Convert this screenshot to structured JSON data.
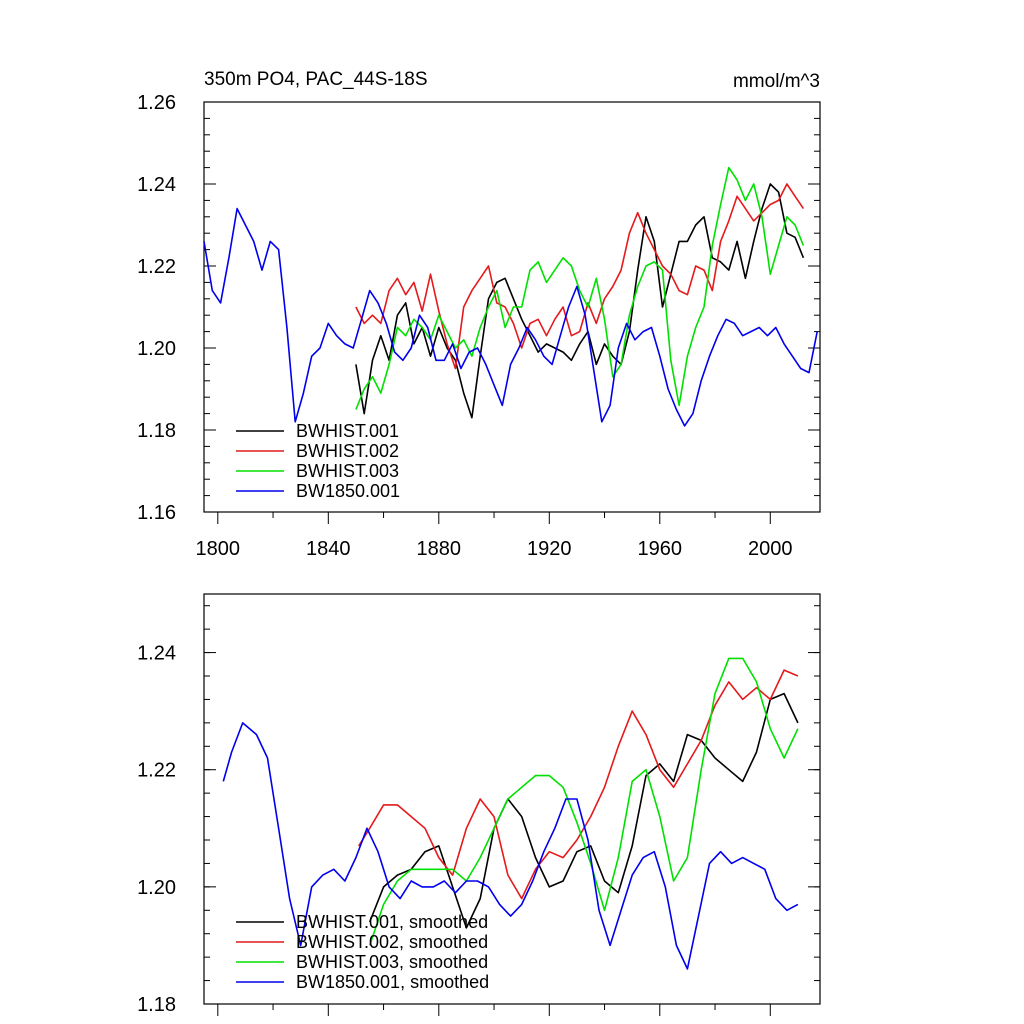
{
  "chart_data": [
    {
      "type": "line",
      "title": "350m PO4, PAC_44S-18S",
      "units": "mmol/m^3",
      "xlim": [
        1795,
        2018
      ],
      "ylim": [
        1.16,
        1.26
      ],
      "xticks": [
        1800,
        1840,
        1880,
        1920,
        1960,
        2000
      ],
      "xtick_labels": [
        "1800",
        "1840",
        "1880",
        "1920",
        "1960",
        "2000"
      ],
      "yticks": [
        1.16,
        1.18,
        1.2,
        1.22,
        1.24,
        1.26
      ],
      "ytick_labels": [
        "1.16",
        "1.18",
        "1.20",
        "1.22",
        "1.24",
        "1.26"
      ],
      "legend_position": "bottom-left",
      "series": [
        {
          "name": "BWHIST.001",
          "color": "#000000",
          "x": [
            1850,
            1853,
            1856,
            1859,
            1862,
            1865,
            1868,
            1871,
            1874,
            1877,
            1880,
            1883,
            1886,
            1889,
            1892,
            1895,
            1898,
            1901,
            1904,
            1907,
            1910,
            1913,
            1916,
            1919,
            1922,
            1925,
            1928,
            1931,
            1934,
            1937,
            1940,
            1943,
            1946,
            1949,
            1952,
            1955,
            1958,
            1961,
            1964,
            1967,
            1970,
            1973,
            1976,
            1979,
            1982,
            1985,
            1988,
            1991,
            1994,
            1997,
            2000,
            2003,
            2006,
            2009,
            2012
          ],
          "y": [
            1.196,
            1.184,
            1.197,
            1.203,
            1.197,
            1.208,
            1.211,
            1.201,
            1.205,
            1.198,
            1.205,
            1.2,
            1.197,
            1.189,
            1.183,
            1.198,
            1.212,
            1.216,
            1.217,
            1.212,
            1.207,
            1.203,
            1.199,
            1.201,
            1.2,
            1.199,
            1.197,
            1.201,
            1.204,
            1.196,
            1.201,
            1.198,
            1.196,
            1.204,
            1.219,
            1.232,
            1.226,
            1.21,
            1.218,
            1.226,
            1.226,
            1.23,
            1.232,
            1.222,
            1.221,
            1.219,
            1.226,
            1.217,
            1.226,
            1.234,
            1.24,
            1.238,
            1.228,
            1.227,
            1.222
          ]
        },
        {
          "name": "BWHIST.002",
          "color": "#e41a1c",
          "x": [
            1850,
            1853,
            1856,
            1859,
            1862,
            1865,
            1868,
            1871,
            1874,
            1877,
            1880,
            1883,
            1886,
            1889,
            1892,
            1895,
            1898,
            1901,
            1904,
            1907,
            1910,
            1913,
            1916,
            1919,
            1922,
            1925,
            1928,
            1931,
            1934,
            1937,
            1940,
            1943,
            1946,
            1949,
            1952,
            1955,
            1958,
            1961,
            1964,
            1967,
            1970,
            1973,
            1976,
            1979,
            1982,
            1985,
            1988,
            1991,
            1994,
            1997,
            2000,
            2003,
            2006,
            2009,
            2012
          ],
          "y": [
            1.21,
            1.206,
            1.208,
            1.206,
            1.214,
            1.217,
            1.213,
            1.216,
            1.209,
            1.218,
            1.209,
            1.201,
            1.195,
            1.21,
            1.214,
            1.217,
            1.22,
            1.211,
            1.21,
            1.206,
            1.2,
            1.206,
            1.207,
            1.203,
            1.207,
            1.21,
            1.203,
            1.204,
            1.211,
            1.206,
            1.212,
            1.215,
            1.219,
            1.228,
            1.233,
            1.228,
            1.224,
            1.22,
            1.218,
            1.214,
            1.213,
            1.22,
            1.219,
            1.214,
            1.226,
            1.231,
            1.237,
            1.234,
            1.231,
            1.233,
            1.235,
            1.236,
            1.24,
            1.237,
            1.234
          ]
        },
        {
          "name": "BWHIST.003",
          "color": "#00e000",
          "x": [
            1850,
            1853,
            1856,
            1859,
            1862,
            1865,
            1868,
            1871,
            1874,
            1877,
            1880,
            1883,
            1886,
            1889,
            1892,
            1895,
            1898,
            1901,
            1904,
            1907,
            1910,
            1913,
            1916,
            1919,
            1922,
            1925,
            1928,
            1931,
            1934,
            1937,
            1940,
            1943,
            1946,
            1949,
            1952,
            1955,
            1958,
            1961,
            1964,
            1967,
            1970,
            1973,
            1976,
            1979,
            1982,
            1985,
            1988,
            1991,
            1994,
            1997,
            2000,
            2003,
            2006,
            2009,
            2012
          ],
          "y": [
            1.185,
            1.19,
            1.193,
            1.189,
            1.196,
            1.205,
            1.203,
            1.207,
            1.205,
            1.202,
            1.208,
            1.204,
            1.2,
            1.202,
            1.198,
            1.205,
            1.21,
            1.214,
            1.205,
            1.21,
            1.21,
            1.219,
            1.221,
            1.216,
            1.219,
            1.222,
            1.22,
            1.214,
            1.21,
            1.217,
            1.207,
            1.193,
            1.196,
            1.208,
            1.215,
            1.22,
            1.221,
            1.219,
            1.197,
            1.186,
            1.198,
            1.205,
            1.21,
            1.225,
            1.235,
            1.244,
            1.241,
            1.236,
            1.24,
            1.232,
            1.218,
            1.225,
            1.232,
            1.23,
            1.225
          ]
        },
        {
          "name": "BW1850.001",
          "color": "#0000ee",
          "x": [
            1795,
            1798,
            1801,
            1804,
            1807,
            1810,
            1813,
            1816,
            1819,
            1822,
            1825,
            1828,
            1831,
            1834,
            1837,
            1840,
            1843,
            1846,
            1849,
            1852,
            1855,
            1858,
            1861,
            1864,
            1867,
            1870,
            1873,
            1876,
            1879,
            1882,
            1885,
            1888,
            1891,
            1894,
            1897,
            1900,
            1903,
            1906,
            1909,
            1912,
            1915,
            1918,
            1921,
            1924,
            1927,
            1930,
            1933,
            1936,
            1939,
            1942,
            1945,
            1948,
            1951,
            1954,
            1957,
            1960,
            1963,
            1966,
            1969,
            1972,
            1975,
            1978,
            1981,
            1984,
            1987,
            1990,
            1993,
            1996,
            1999,
            2002,
            2005,
            2008,
            2011,
            2014,
            2017
          ],
          "y": [
            1.226,
            1.214,
            1.211,
            1.222,
            1.234,
            1.23,
            1.226,
            1.219,
            1.226,
            1.224,
            1.205,
            1.182,
            1.189,
            1.198,
            1.2,
            1.206,
            1.203,
            1.201,
            1.2,
            1.207,
            1.214,
            1.211,
            1.206,
            1.199,
            1.197,
            1.2,
            1.208,
            1.205,
            1.197,
            1.197,
            1.201,
            1.195,
            1.199,
            1.2,
            1.196,
            1.191,
            1.186,
            1.196,
            1.2,
            1.205,
            1.202,
            1.198,
            1.196,
            1.203,
            1.21,
            1.215,
            1.208,
            1.195,
            1.182,
            1.186,
            1.2,
            1.206,
            1.202,
            1.204,
            1.205,
            1.198,
            1.19,
            1.185,
            1.181,
            1.184,
            1.192,
            1.198,
            1.203,
            1.207,
            1.206,
            1.203,
            1.204,
            1.205,
            1.203,
            1.205,
            1.201,
            1.198,
            1.195,
            1.194,
            1.204
          ]
        }
      ]
    },
    {
      "type": "line",
      "xlim": [
        1795,
        2018
      ],
      "ylim": [
        1.18,
        1.25
      ],
      "xticks": [
        1800,
        1840,
        1880,
        1920,
        1960,
        2000
      ],
      "yticks": [
        1.18,
        1.2,
        1.22,
        1.24
      ],
      "ytick_labels": [
        "1.18",
        "1.20",
        "1.22",
        "1.24"
      ],
      "legend_position": "bottom-left",
      "series": [
        {
          "name": "BWHIST.001, smoothed",
          "color": "#000000",
          "x": [
            1855,
            1860,
            1865,
            1870,
            1875,
            1880,
            1885,
            1890,
            1895,
            1900,
            1905,
            1910,
            1915,
            1920,
            1925,
            1930,
            1935,
            1940,
            1945,
            1950,
            1955,
            1960,
            1965,
            1970,
            1975,
            1980,
            1985,
            1990,
            1995,
            2000,
            2005,
            2010
          ],
          "y": [
            1.194,
            1.2,
            1.202,
            1.203,
            1.206,
            1.207,
            1.2,
            1.193,
            1.198,
            1.21,
            1.215,
            1.212,
            1.205,
            1.2,
            1.201,
            1.206,
            1.207,
            1.201,
            1.199,
            1.207,
            1.219,
            1.221,
            1.218,
            1.226,
            1.225,
            1.222,
            1.22,
            1.218,
            1.223,
            1.232,
            1.233,
            1.228
          ]
        },
        {
          "name": "BWHIST.002, smoothed",
          "color": "#e41a1c",
          "x": [
            1851,
            1855,
            1860,
            1865,
            1870,
            1875,
            1880,
            1885,
            1890,
            1895,
            1900,
            1905,
            1910,
            1915,
            1920,
            1925,
            1930,
            1935,
            1940,
            1945,
            1950,
            1955,
            1960,
            1965,
            1970,
            1975,
            1980,
            1985,
            1990,
            1995,
            2000,
            2005,
            2010
          ],
          "y": [
            1.207,
            1.21,
            1.214,
            1.214,
            1.212,
            1.21,
            1.205,
            1.202,
            1.21,
            1.215,
            1.212,
            1.202,
            1.198,
            1.203,
            1.206,
            1.205,
            1.208,
            1.212,
            1.217,
            1.224,
            1.23,
            1.226,
            1.22,
            1.217,
            1.221,
            1.225,
            1.231,
            1.235,
            1.232,
            1.234,
            1.232,
            1.237,
            1.236
          ]
        },
        {
          "name": "BWHIST.003, smoothed",
          "color": "#00e000",
          "x": [
            1855,
            1860,
            1865,
            1870,
            1875,
            1880,
            1885,
            1890,
            1895,
            1900,
            1905,
            1910,
            1915,
            1920,
            1925,
            1930,
            1935,
            1940,
            1945,
            1950,
            1955,
            1960,
            1965,
            1970,
            1975,
            1980,
            1985,
            1990,
            1995,
            2000,
            2005,
            2010
          ],
          "y": [
            1.19,
            1.197,
            1.201,
            1.203,
            1.203,
            1.203,
            1.203,
            1.201,
            1.205,
            1.21,
            1.215,
            1.217,
            1.219,
            1.219,
            1.217,
            1.211,
            1.204,
            1.196,
            1.205,
            1.218,
            1.22,
            1.212,
            1.201,
            1.205,
            1.22,
            1.233,
            1.239,
            1.239,
            1.235,
            1.227,
            1.222,
            1.227
          ]
        },
        {
          "name": "BW1850.001, smoothed",
          "color": "#0000ee",
          "x": [
            1802,
            1805,
            1809,
            1814,
            1818,
            1822,
            1826,
            1830,
            1834,
            1838,
            1842,
            1846,
            1850,
            1854,
            1858,
            1862,
            1866,
            1870,
            1874,
            1878,
            1882,
            1886,
            1890,
            1894,
            1898,
            1902,
            1906,
            1910,
            1914,
            1918,
            1922,
            1926,
            1930,
            1934,
            1938,
            1942,
            1946,
            1950,
            1954,
            1958,
            1962,
            1966,
            1970,
            1974,
            1978,
            1982,
            1986,
            1990,
            1994,
            1998,
            2002,
            2006,
            2010
          ],
          "y": [
            1.218,
            1.223,
            1.228,
            1.226,
            1.222,
            1.21,
            1.198,
            1.19,
            1.2,
            1.202,
            1.203,
            1.201,
            1.205,
            1.21,
            1.206,
            1.2,
            1.198,
            1.201,
            1.2,
            1.2,
            1.201,
            1.199,
            1.201,
            1.201,
            1.2,
            1.197,
            1.195,
            1.197,
            1.201,
            1.206,
            1.21,
            1.215,
            1.215,
            1.208,
            1.196,
            1.19,
            1.196,
            1.202,
            1.205,
            1.206,
            1.2,
            1.19,
            1.186,
            1.195,
            1.204,
            1.206,
            1.204,
            1.205,
            1.204,
            1.203,
            1.198,
            1.196,
            1.197
          ]
        }
      ]
    }
  ]
}
